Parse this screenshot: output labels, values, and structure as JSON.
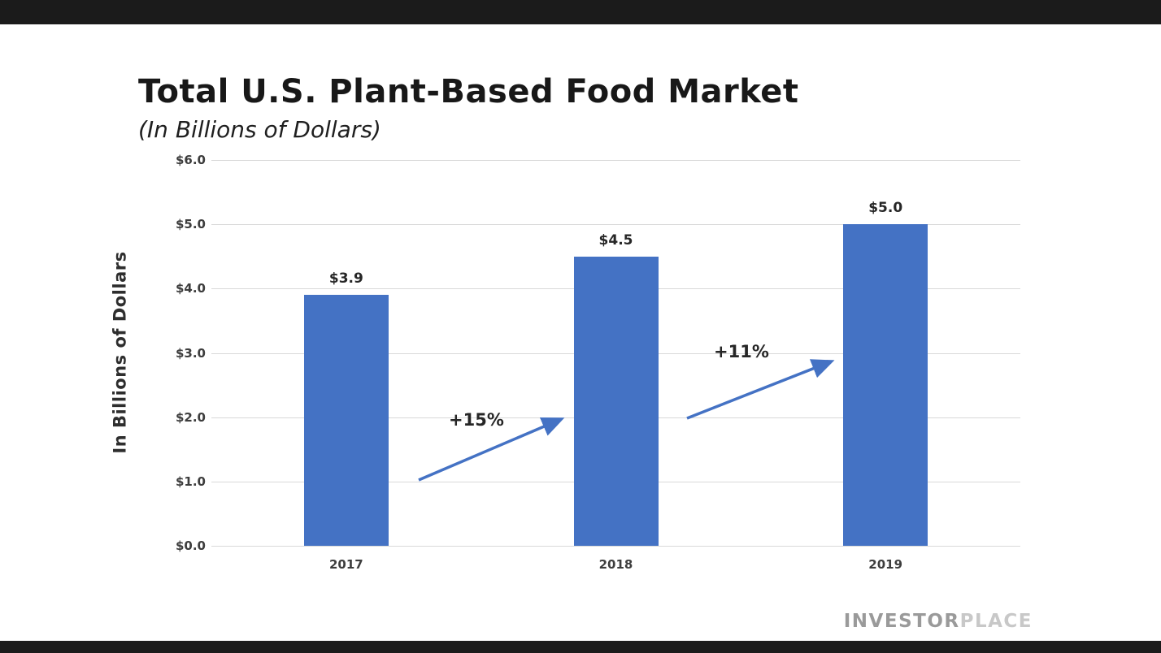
{
  "page": {
    "brand": {
      "part1": "INVESTOR",
      "part2": "PLACE"
    }
  },
  "chart_data": {
    "type": "bar",
    "title": "Total U.S. Plant-Based Food Market",
    "subtitle": "(In Billions of Dollars)",
    "categories": [
      "2017",
      "2018",
      "2019"
    ],
    "values": [
      3.9,
      4.5,
      5.0
    ],
    "bar_labels": [
      "$3.9",
      "$4.5",
      "$5.0"
    ],
    "ylabel": "In Billions of Dollars",
    "ylim": [
      0,
      6
    ],
    "yticks": [
      "$6.0",
      "$5.0",
      "$4.0",
      "$3.0",
      "$2.0",
      "$1.0",
      "$0.0"
    ],
    "grid": true,
    "legend": "none",
    "bar_color": "#4472C4",
    "accent_color": "#4472C4",
    "annotations": [
      {
        "label": "+15%",
        "between": [
          "2017",
          "2018"
        ]
      },
      {
        "label": "+11%",
        "between": [
          "2018",
          "2019"
        ]
      }
    ]
  }
}
